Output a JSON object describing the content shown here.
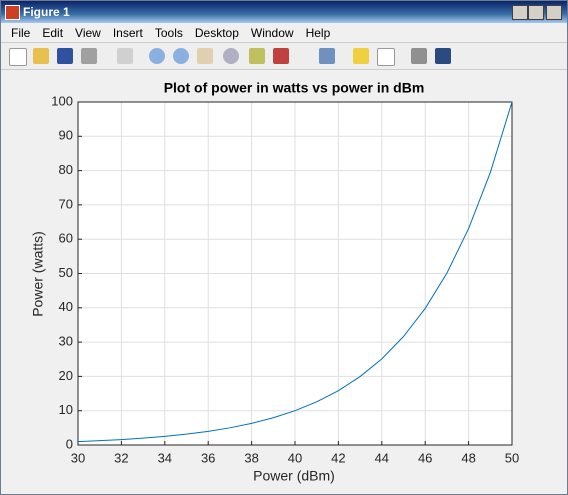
{
  "window": {
    "title": "Figure 1",
    "menu": [
      "File",
      "Edit",
      "View",
      "Insert",
      "Tools",
      "Desktop",
      "Window",
      "Help"
    ]
  },
  "chart_data": {
    "type": "line",
    "title": "Plot of power in watts vs power in dBm",
    "xlabel": "Power (dBm)",
    "ylabel": "Power (watts)",
    "x": [
      30,
      31,
      32,
      33,
      34,
      35,
      36,
      37,
      38,
      39,
      40,
      41,
      42,
      43,
      44,
      45,
      46,
      47,
      48,
      49,
      50
    ],
    "values": [
      1,
      1.259,
      1.585,
      1.995,
      2.512,
      3.162,
      3.981,
      5.012,
      6.31,
      7.943,
      10,
      12.589,
      15.849,
      19.953,
      25.119,
      31.623,
      39.811,
      50.119,
      63.096,
      79.433,
      100
    ],
    "color": "#0072bd",
    "xlim": [
      30,
      50
    ],
    "xticks": [
      30,
      32,
      34,
      36,
      38,
      40,
      42,
      44,
      46,
      48,
      50
    ],
    "ylim": [
      0,
      100
    ],
    "yticks": [
      0,
      10,
      20,
      30,
      40,
      50,
      60,
      70,
      80,
      90,
      100
    ],
    "grid": true
  }
}
